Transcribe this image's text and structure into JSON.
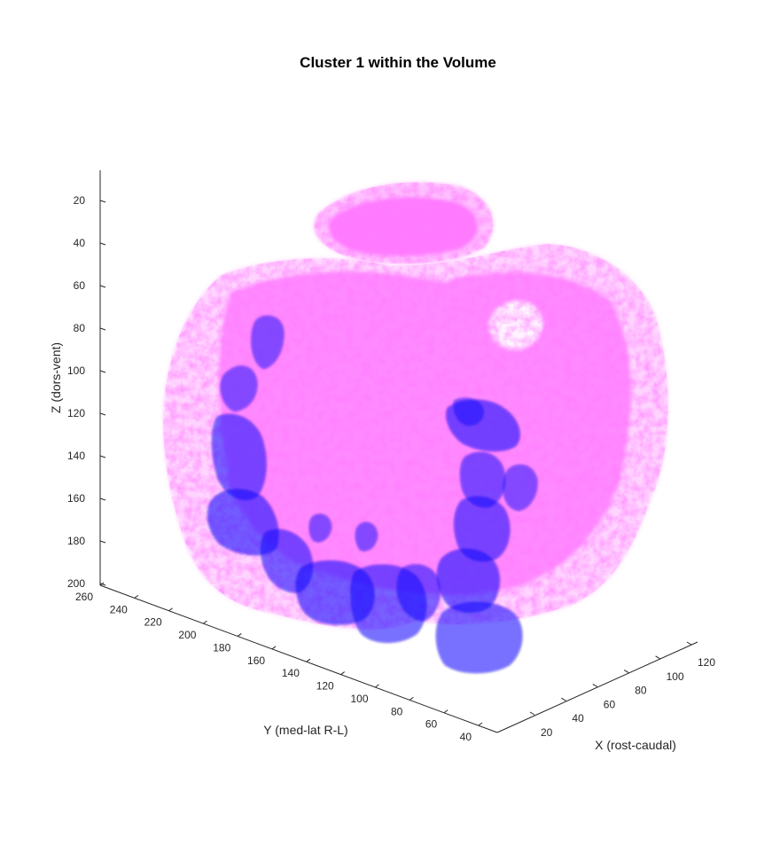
{
  "chart_data": {
    "type": "isosurface-3d",
    "title": "Cluster 1 within the Volume",
    "xlabel": "X (rost-caudal)",
    "ylabel": "Y (med-lat R-L)",
    "zlabel": "Z (dors-vent)",
    "x_ticks": [
      20,
      40,
      60,
      80,
      100,
      120
    ],
    "y_ticks": [
      40,
      60,
      80,
      100,
      120,
      140,
      160,
      180,
      200,
      220,
      240,
      260
    ],
    "z_ticks": [
      20,
      40,
      60,
      80,
      100,
      120,
      140,
      160,
      180,
      200
    ],
    "zlim": [
      10,
      200
    ],
    "z_direction": "reverse",
    "series": [
      {
        "role": "volume",
        "color": "#ff33ff",
        "opacity": "translucent"
      },
      {
        "role": "cluster",
        "color": "#2a17ff",
        "opacity": "translucent"
      }
    ]
  }
}
